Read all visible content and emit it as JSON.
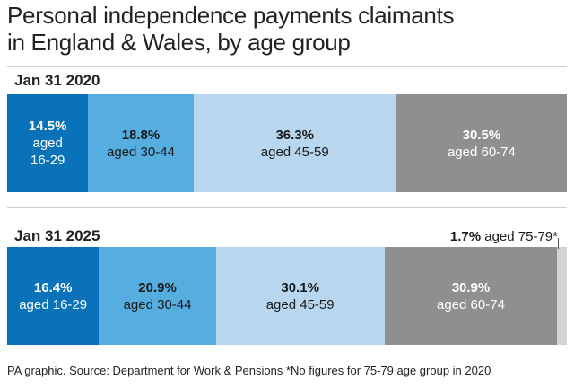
{
  "title_line1": "Personal independence payments claimants",
  "title_line2": "in England & Wales, by age group",
  "source": "PA graphic. Source: Department for Work & Pensions *No figures for 75-79 age group in 2020",
  "colors": {
    "age_16_29": "#0a72b8",
    "age_30_44": "#56ade0",
    "age_45_59": "#b8d7ef",
    "age_60_74": "#8f8f8f",
    "age_75_79": "#d4d4d4"
  },
  "chart_data": {
    "type": "bar",
    "orientation": "horizontal-stacked",
    "unit": "%",
    "categories": [
      "Jan 31 2020",
      "Jan 31 2025"
    ],
    "series": [
      {
        "name": "aged 16-29",
        "values": [
          14.5,
          16.4
        ]
      },
      {
        "name": "aged 30-44",
        "values": [
          18.8,
          20.9
        ]
      },
      {
        "name": "aged 45-59",
        "values": [
          36.3,
          30.1
        ]
      },
      {
        "name": "aged 60-74",
        "values": [
          30.5,
          30.9
        ]
      },
      {
        "name": "aged 75-79",
        "values": [
          null,
          1.7
        ]
      }
    ],
    "labels_2020": [
      {
        "pct": "14.5%",
        "l1": "aged",
        "l2": "16-29"
      },
      {
        "pct": "18.8%",
        "l1": "aged 30-44",
        "l2": ""
      },
      {
        "pct": "36.3%",
        "l1": "aged 45-59",
        "l2": ""
      },
      {
        "pct": "30.5%",
        "l1": "aged 60-74",
        "l2": ""
      }
    ],
    "labels_2025": [
      {
        "pct": "16.4%",
        "l1": "aged 16-29",
        "l2": ""
      },
      {
        "pct": "20.9%",
        "l1": "aged 30-44",
        "l2": ""
      },
      {
        "pct": "30.1%",
        "l1": "aged 45-59",
        "l2": ""
      },
      {
        "pct": "30.9%",
        "l1": "aged 60-74",
        "l2": ""
      }
    ],
    "callout_pct": "1.7%",
    "callout_label": "aged 75-79*"
  }
}
